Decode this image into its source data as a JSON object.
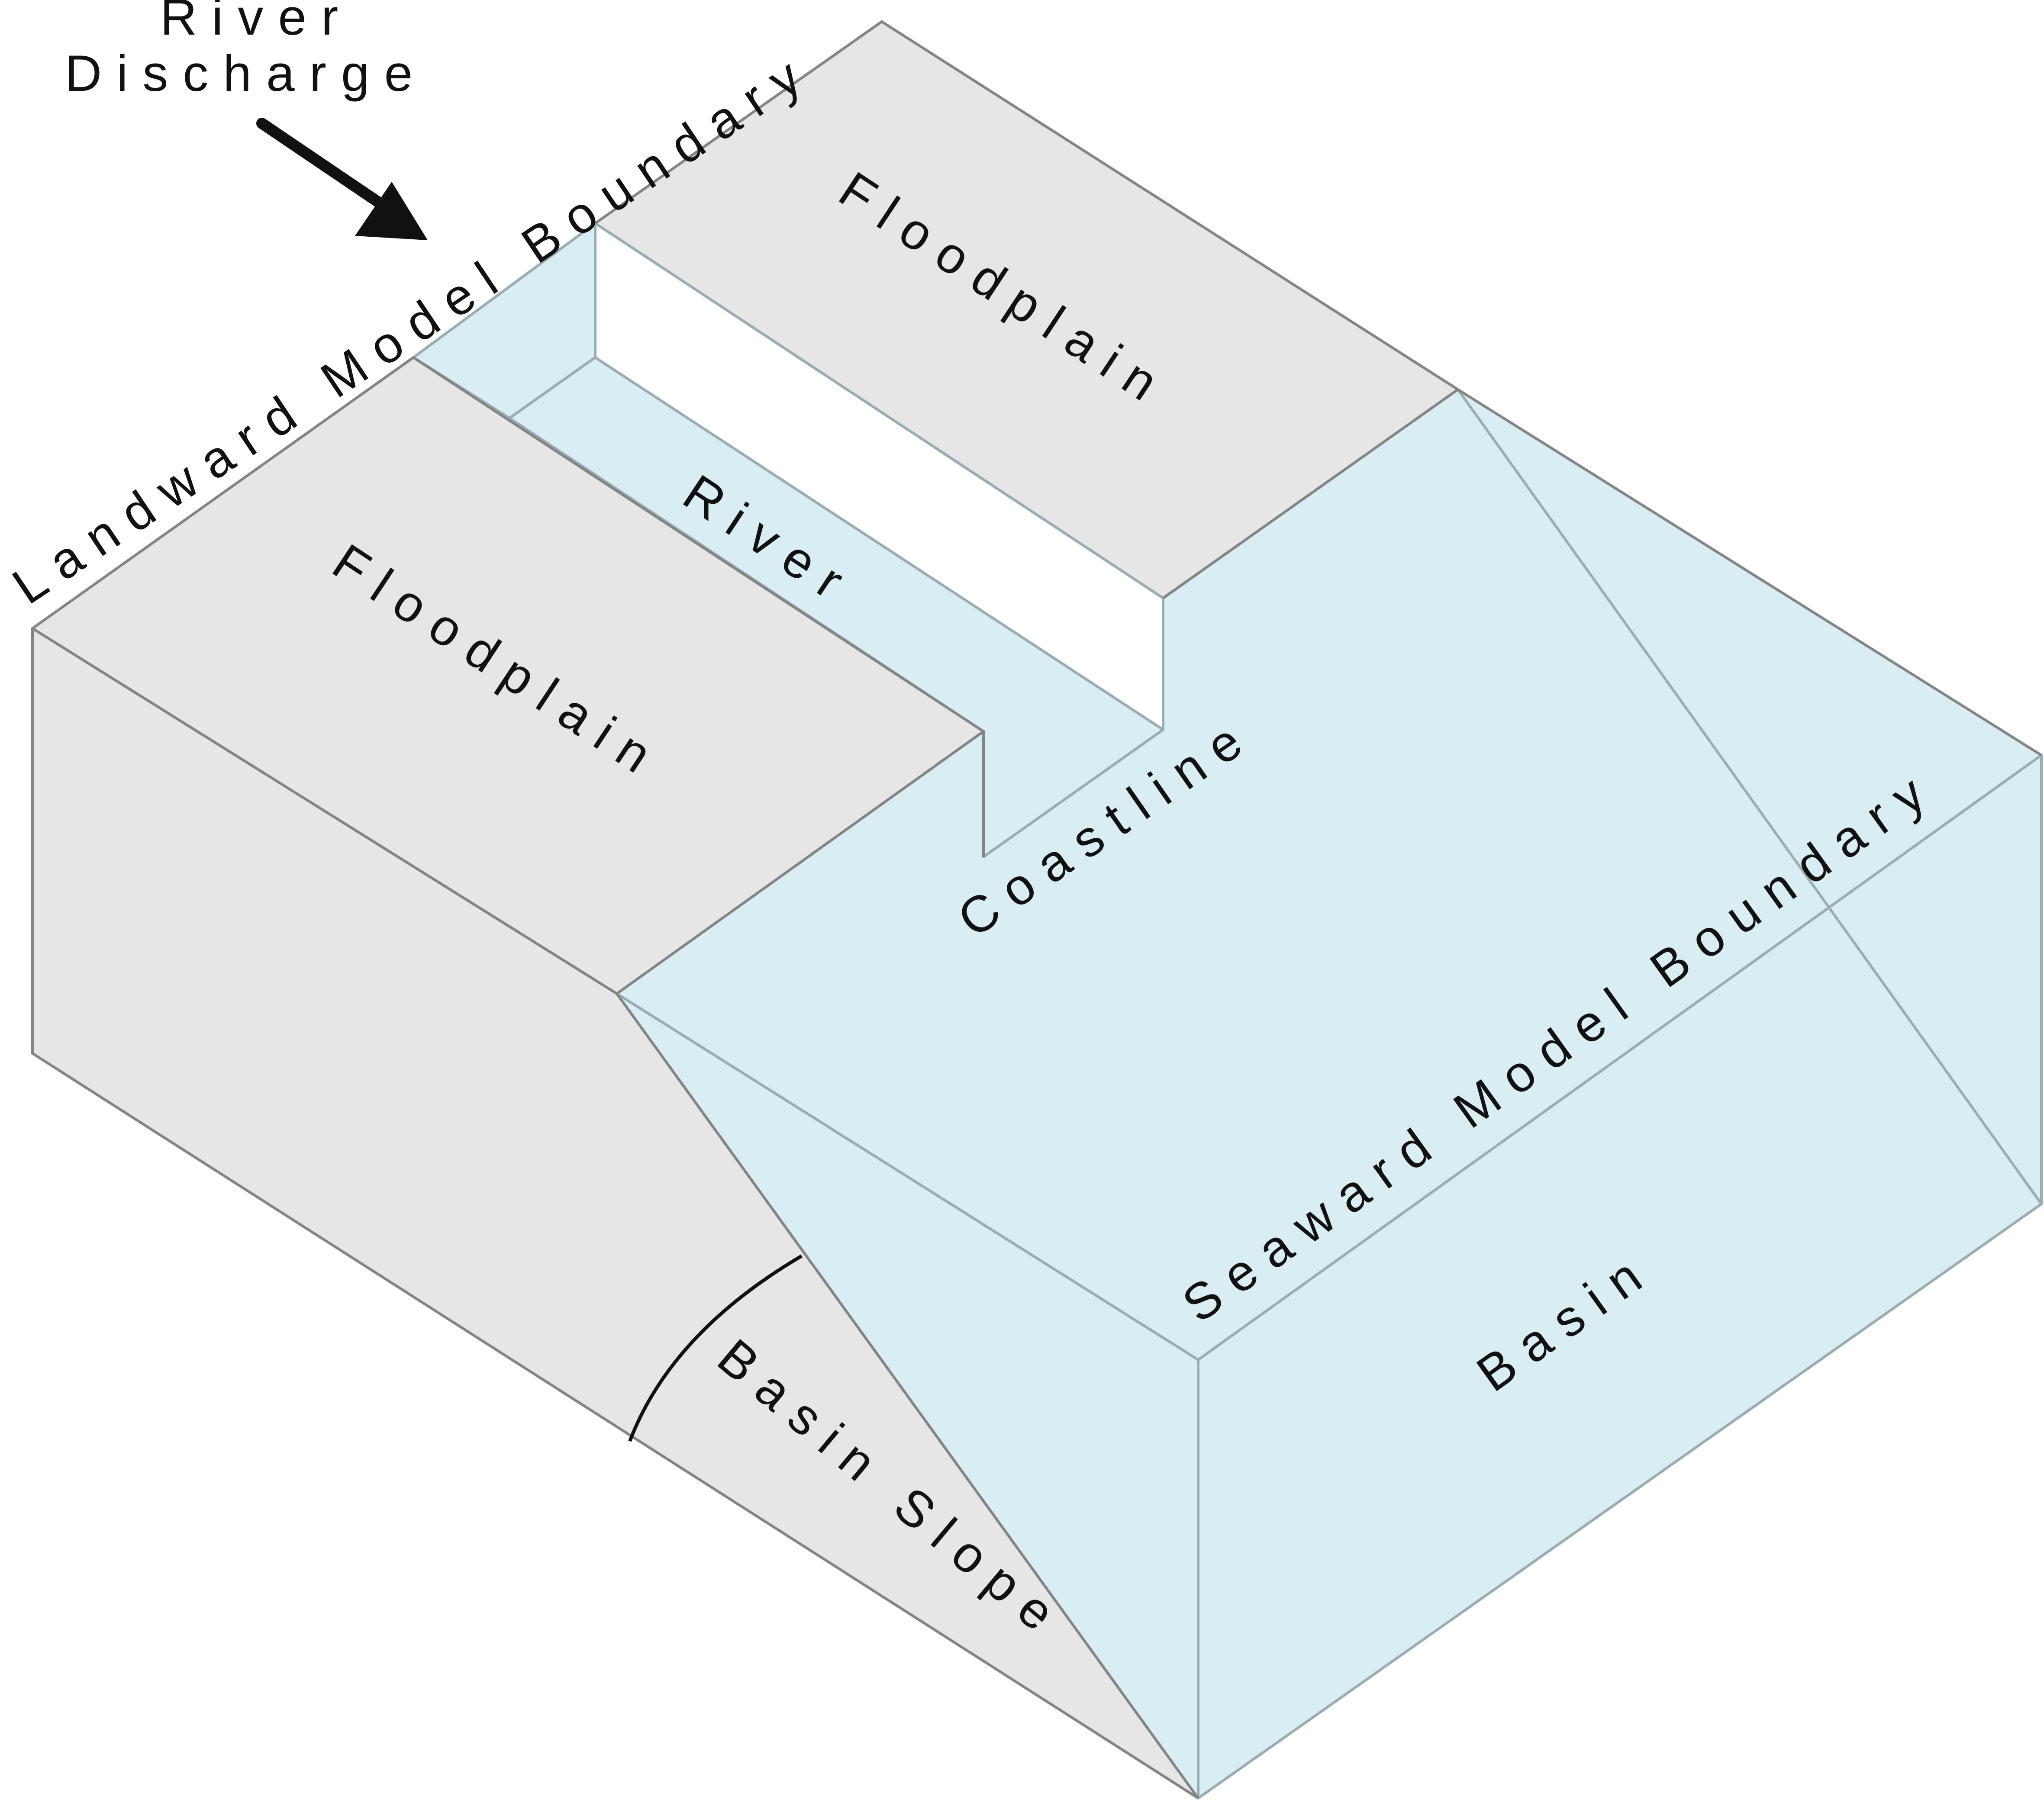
{
  "colors": {
    "land_fill": "#e6e6e6",
    "water_fill": "#d8eef2",
    "land_edge": "#858585",
    "water_edge": "#99adb3",
    "text": "#111111"
  },
  "labels": {
    "river_discharge_line1": "River",
    "river_discharge_line2": "Discharge",
    "landward_boundary": "Landward Model Boundary",
    "floodplain_upper": "Floodplain",
    "floodplain_lower": "Floodplain",
    "river": "River",
    "coastline": "Coastline",
    "seaward_boundary": "Seaward Model Boundary",
    "basin": "Basin",
    "basin_slope": "Basin Slope"
  },
  "icons": {
    "discharge_arrow": "arrow-down-right-icon",
    "slope_angle_arc": "angle-arc-icon"
  }
}
